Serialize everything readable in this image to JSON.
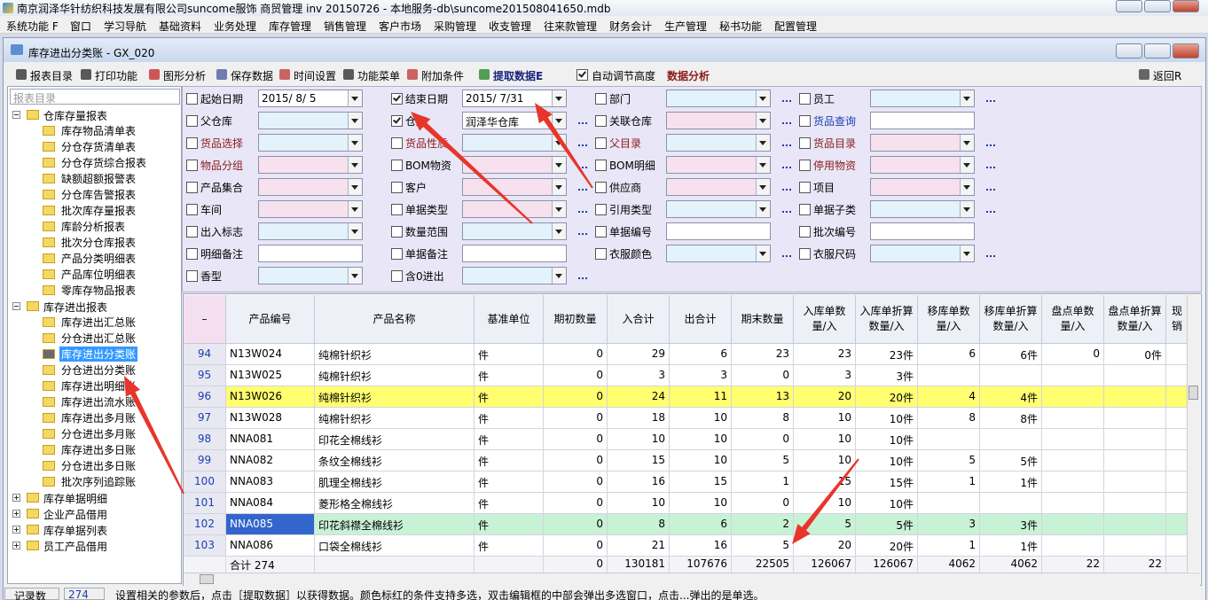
{
  "title_bar": "南京润泽华针纺织科技发展有限公司suncome服饰 商贸管理 inv 20150726 - 本地服务-db\\suncome201508041650.mdb",
  "menu": [
    "系统功能 F",
    "窗口",
    "学习导航",
    "基础资料",
    "业务处理",
    "库存管理",
    "销售管理",
    "客户市场",
    "采购管理",
    "收支管理",
    "往来款管理",
    "财务会计",
    "生产管理",
    "秘书功能",
    "配置管理"
  ],
  "window": {
    "title": "库存进出分类账 - GX_020"
  },
  "toolbar": {
    "items": [
      "报表目录",
      "打印功能",
      "图形分析",
      "保存数据",
      "时间设置",
      "功能菜单",
      "附加条件",
      "提取数据E"
    ],
    "auto_height": {
      "label": "自动调节高度",
      "checked": true
    },
    "analysis": "数据分析",
    "back": "返回R"
  },
  "tree": {
    "search": "报表目录",
    "groups": [
      {
        "label": "仓库存量报表",
        "expanded": true,
        "items": [
          "库存物品清单表",
          "分仓存货清单表",
          "分仓存货综合报表",
          "缺额超额报警表",
          "分仓库告警报表",
          "批次库存量报表",
          "库龄分析报表",
          "批次分仓库报表",
          "产品分类明细表",
          "产品库位明细表",
          "零库存物品报表"
        ]
      },
      {
        "label": "库存进出报表",
        "expanded": true,
        "selected": 2,
        "items": [
          "库存进出汇总账",
          "分仓进出汇总账",
          "库存进出分类账",
          "分仓进出分类账",
          "库存进出明细账",
          "库存进出流水账",
          "库存进出多月账",
          "分仓进出多月账",
          "库存进出多日账",
          "分仓进出多日账",
          "批次序列追踪账"
        ]
      },
      {
        "label": "库存单据明细",
        "expanded": false
      },
      {
        "label": "企业产品借用",
        "expanded": false
      },
      {
        "label": "库存单据列表",
        "expanded": false
      },
      {
        "label": "员工产品借用",
        "expanded": false
      }
    ]
  },
  "filters": {
    "columns": [
      [
        {
          "label": "起始日期",
          "checked": false,
          "value": "2015/  8/  5"
        },
        {
          "label": "父仓库",
          "checked": false
        },
        {
          "label": "货品选择",
          "checked": false,
          "color": "#8b1a1a"
        },
        {
          "label": "物品分组",
          "checked": false,
          "color": "#8b1a1a"
        },
        {
          "label": "产品集合",
          "checked": false
        },
        {
          "label": "车间",
          "checked": false
        },
        {
          "label": "出入标志",
          "checked": false
        },
        {
          "label": "明细备注",
          "checked": false
        },
        {
          "label": "香型",
          "checked": false
        }
      ],
      [
        {
          "label": "结束日期",
          "checked": true,
          "value": "2015/  7/31"
        },
        {
          "label": "仓库",
          "checked": true,
          "value": "润泽华仓库"
        },
        {
          "label": "货品性质",
          "checked": false,
          "color": "#8b1a1a"
        },
        {
          "label": "BOM物资",
          "checked": false
        },
        {
          "label": "客户",
          "checked": false
        },
        {
          "label": "单据类型",
          "checked": false
        },
        {
          "label": "数量范围",
          "checked": false
        },
        {
          "label": "单据备注",
          "checked": false
        },
        {
          "label": "含0进出",
          "checked": false
        }
      ],
      [
        {
          "label": "部门",
          "checked": false
        },
        {
          "label": "关联仓库",
          "checked": false
        },
        {
          "label": "父目录",
          "checked": false,
          "color": "#8b1a1a"
        },
        {
          "label": "BOM明细",
          "checked": false
        },
        {
          "label": "供应商",
          "checked": false
        },
        {
          "label": "引用类型",
          "checked": false
        },
        {
          "label": "单据编号",
          "checked": false
        },
        {
          "label": "衣服颜色",
          "checked": false
        }
      ],
      [
        {
          "label": "员工",
          "checked": false
        },
        {
          "label": "货品查询",
          "checked": false,
          "color": "#1a3fb0"
        },
        {
          "label": "货品目录",
          "checked": false,
          "color": "#8b1a1a"
        },
        {
          "label": "停用物资",
          "checked": false,
          "color": "#8b1a1a"
        },
        {
          "label": "项目",
          "checked": false
        },
        {
          "label": "单据子类",
          "checked": false
        },
        {
          "label": "批次编号",
          "checked": false
        },
        {
          "label": "衣服尺码",
          "checked": false
        }
      ]
    ]
  },
  "table": {
    "columns": [
      "–",
      "产品编号",
      "产品名称",
      "基准单位",
      "期初数量",
      "入合计",
      "出合计",
      "期末数量",
      "入库单数量/入",
      "入库单折算数量/入",
      "移库单数量/入",
      "移库单折算数量/入",
      "盘点单数量/入",
      "盘点单折算数量/入",
      "现销"
    ],
    "rows": [
      [
        "94",
        "N13W024",
        "纯棉针织衫",
        "件",
        "0",
        "29",
        "6",
        "23",
        "23",
        "23件",
        "6",
        "6件",
        "0",
        "0件",
        null
      ],
      [
        "95",
        "N13W025",
        "纯棉针织衫",
        "件",
        "0",
        "3",
        "3",
        "0",
        "3",
        "3件",
        null,
        null,
        null,
        null,
        null
      ],
      [
        "96",
        "N13W026",
        "纯棉针织衫",
        "件",
        "0",
        "24",
        "11",
        "13",
        "20",
        "20件",
        "4",
        "4件",
        null,
        null,
        null
      ],
      [
        "97",
        "N13W028",
        "纯棉针织衫",
        "件",
        "0",
        "18",
        "10",
        "8",
        "10",
        "10件",
        "8",
        "8件",
        null,
        null,
        null
      ],
      [
        "98",
        "NNA081",
        "印花全棉线衫",
        "件",
        "0",
        "10",
        "10",
        "0",
        "10",
        "10件",
        null,
        null,
        null,
        null,
        null
      ],
      [
        "99",
        "NNA082",
        "条纹全棉线衫",
        "件",
        "0",
        "15",
        "10",
        "5",
        "10",
        "10件",
        "5",
        "5件",
        null,
        null,
        null
      ],
      [
        "100",
        "NNA083",
        "肌理全棉线衫",
        "件",
        "0",
        "16",
        "15",
        "1",
        "15",
        "15件",
        "1",
        "1件",
        null,
        null,
        null
      ],
      [
        "101",
        "NNA084",
        "菱形格全棉线衫",
        "件",
        "0",
        "10",
        "10",
        "0",
        "10",
        "10件",
        null,
        null,
        null,
        null,
        null
      ],
      [
        "102",
        "NNA085",
        "印花斜襟全棉线衫",
        "件",
        "0",
        "8",
        "6",
        "2",
        "5",
        "5件",
        "3",
        "3件",
        null,
        null,
        null
      ],
      [
        "103",
        "NNA086",
        "口袋全棉线衫",
        "件",
        "0",
        "21",
        "16",
        "5",
        "20",
        "20件",
        "1",
        "1件",
        null,
        null,
        null
      ]
    ],
    "total": [
      null,
      "合计 274",
      null,
      null,
      "0",
      "130181",
      "107676",
      "22505",
      "126067",
      "126067",
      "4062",
      "4062",
      "22",
      "22",
      null
    ]
  },
  "status": {
    "label": "记录数",
    "count": "274",
    "message": "设置相关的参数后，点击［提取数据］以获得数据。颜色标红的条件支持多选，双击编辑框的中部会弹出多选窗口，点击...弹出的是单选。"
  }
}
